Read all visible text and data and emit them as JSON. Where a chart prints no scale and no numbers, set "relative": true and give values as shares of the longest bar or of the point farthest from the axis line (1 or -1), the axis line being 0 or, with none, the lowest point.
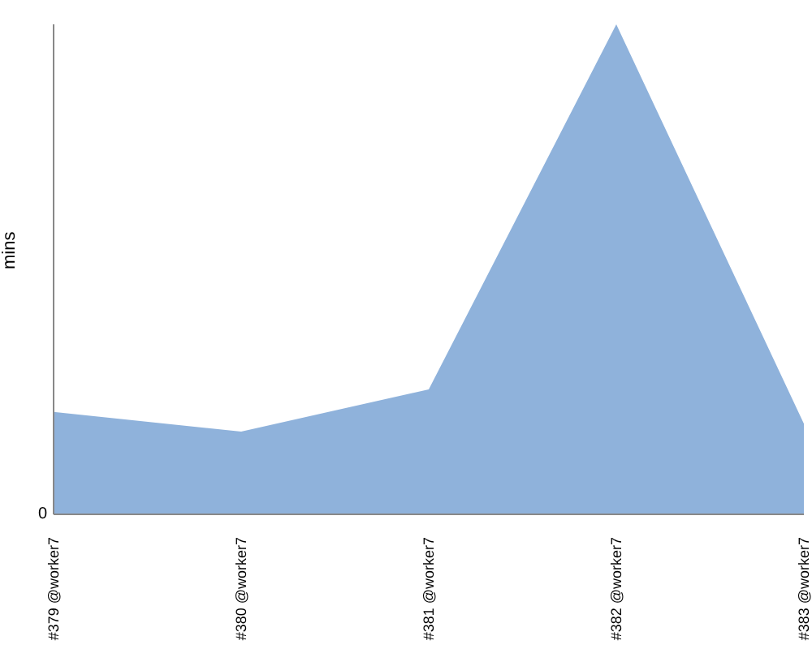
{
  "chart_data": {
    "type": "area",
    "relative": true,
    "ylabel": "mins",
    "categories": [
      "#379 @worker7",
      "#380 @worker7",
      "#381 @worker7",
      "#382 @worker7",
      "#383 @worker7"
    ],
    "annotations": [
      "0"
    ],
    "series": [
      {
        "color": "#8fb2db",
        "values": [
          0.209,
          0.169,
          0.255,
          1,
          0.185
        ]
      }
    ],
    "grid": false,
    "legend": false
  }
}
